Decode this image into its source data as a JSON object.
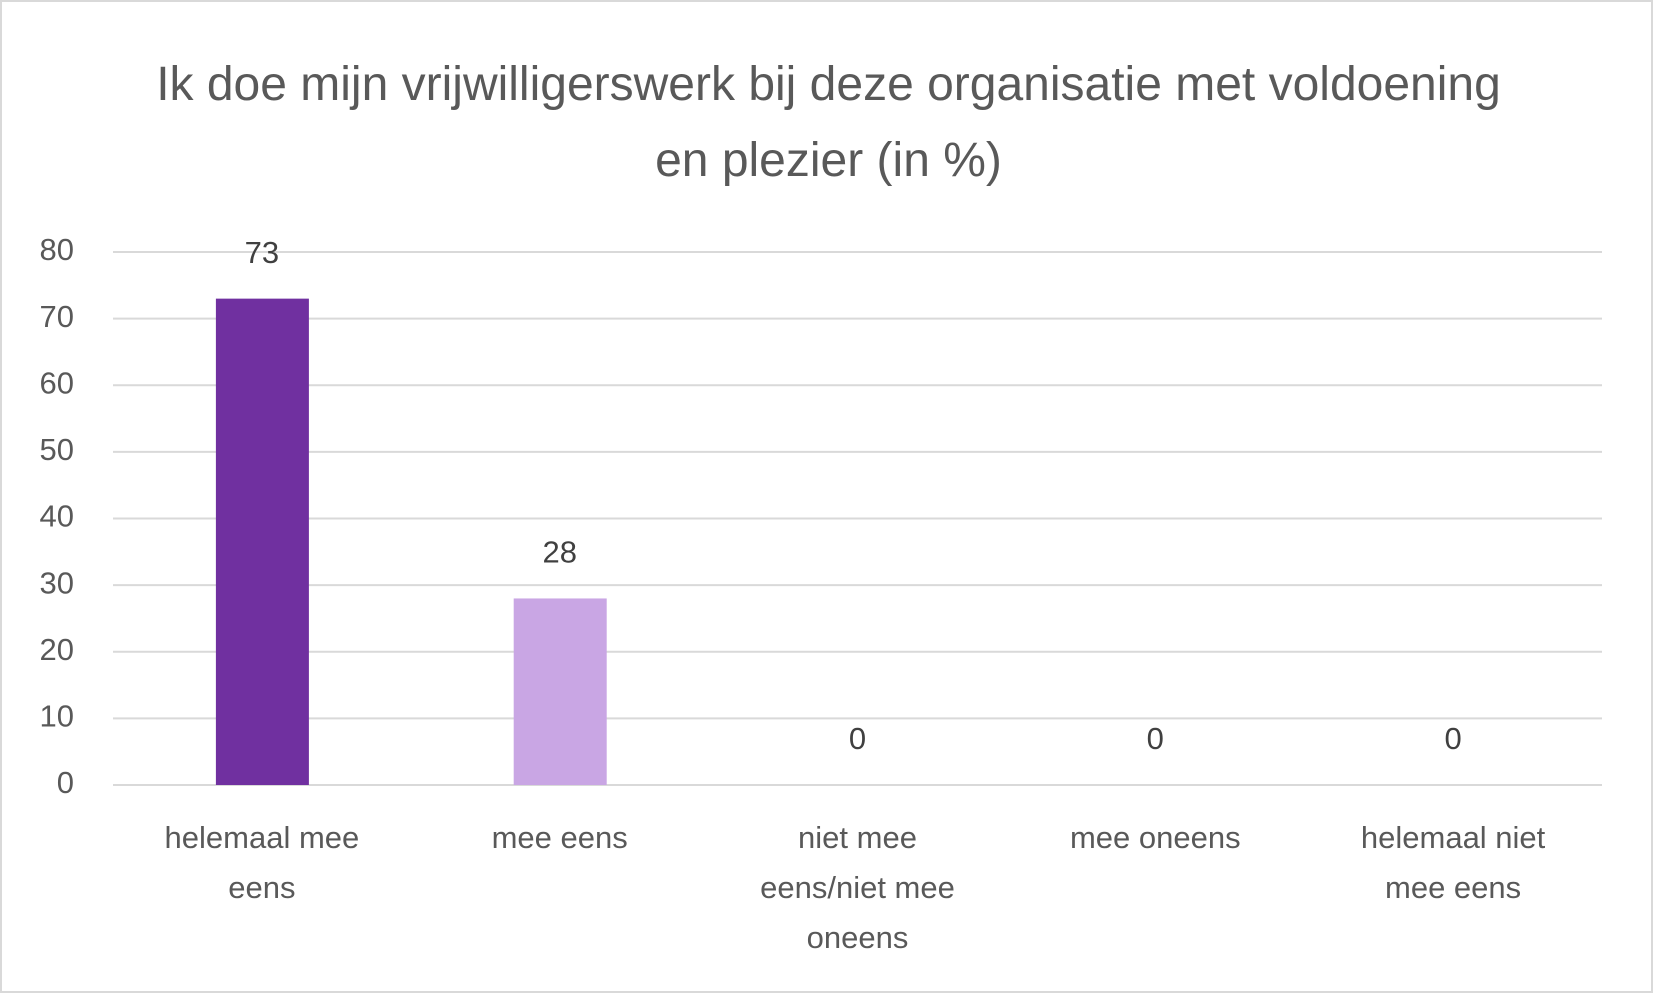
{
  "chart_data": {
    "type": "bar",
    "title": "Ik doe mijn vrijwilligerswerk bij deze organisatie met voldoening en plezier (in %)",
    "categories": [
      "helemaal mee eens",
      "mee eens",
      "niet mee eens/niet mee oneens",
      "mee oneens",
      "helemaal niet mee eens"
    ],
    "values": [
      73,
      28,
      0,
      0,
      0
    ],
    "colors": [
      "#7030a0",
      "#c9a6e4",
      "#7030a0",
      "#7030a0",
      "#7030a0"
    ],
    "ylim": [
      0,
      80
    ],
    "yticks": [
      0,
      10,
      20,
      30,
      40,
      50,
      60,
      70,
      80
    ],
    "grid": true
  }
}
